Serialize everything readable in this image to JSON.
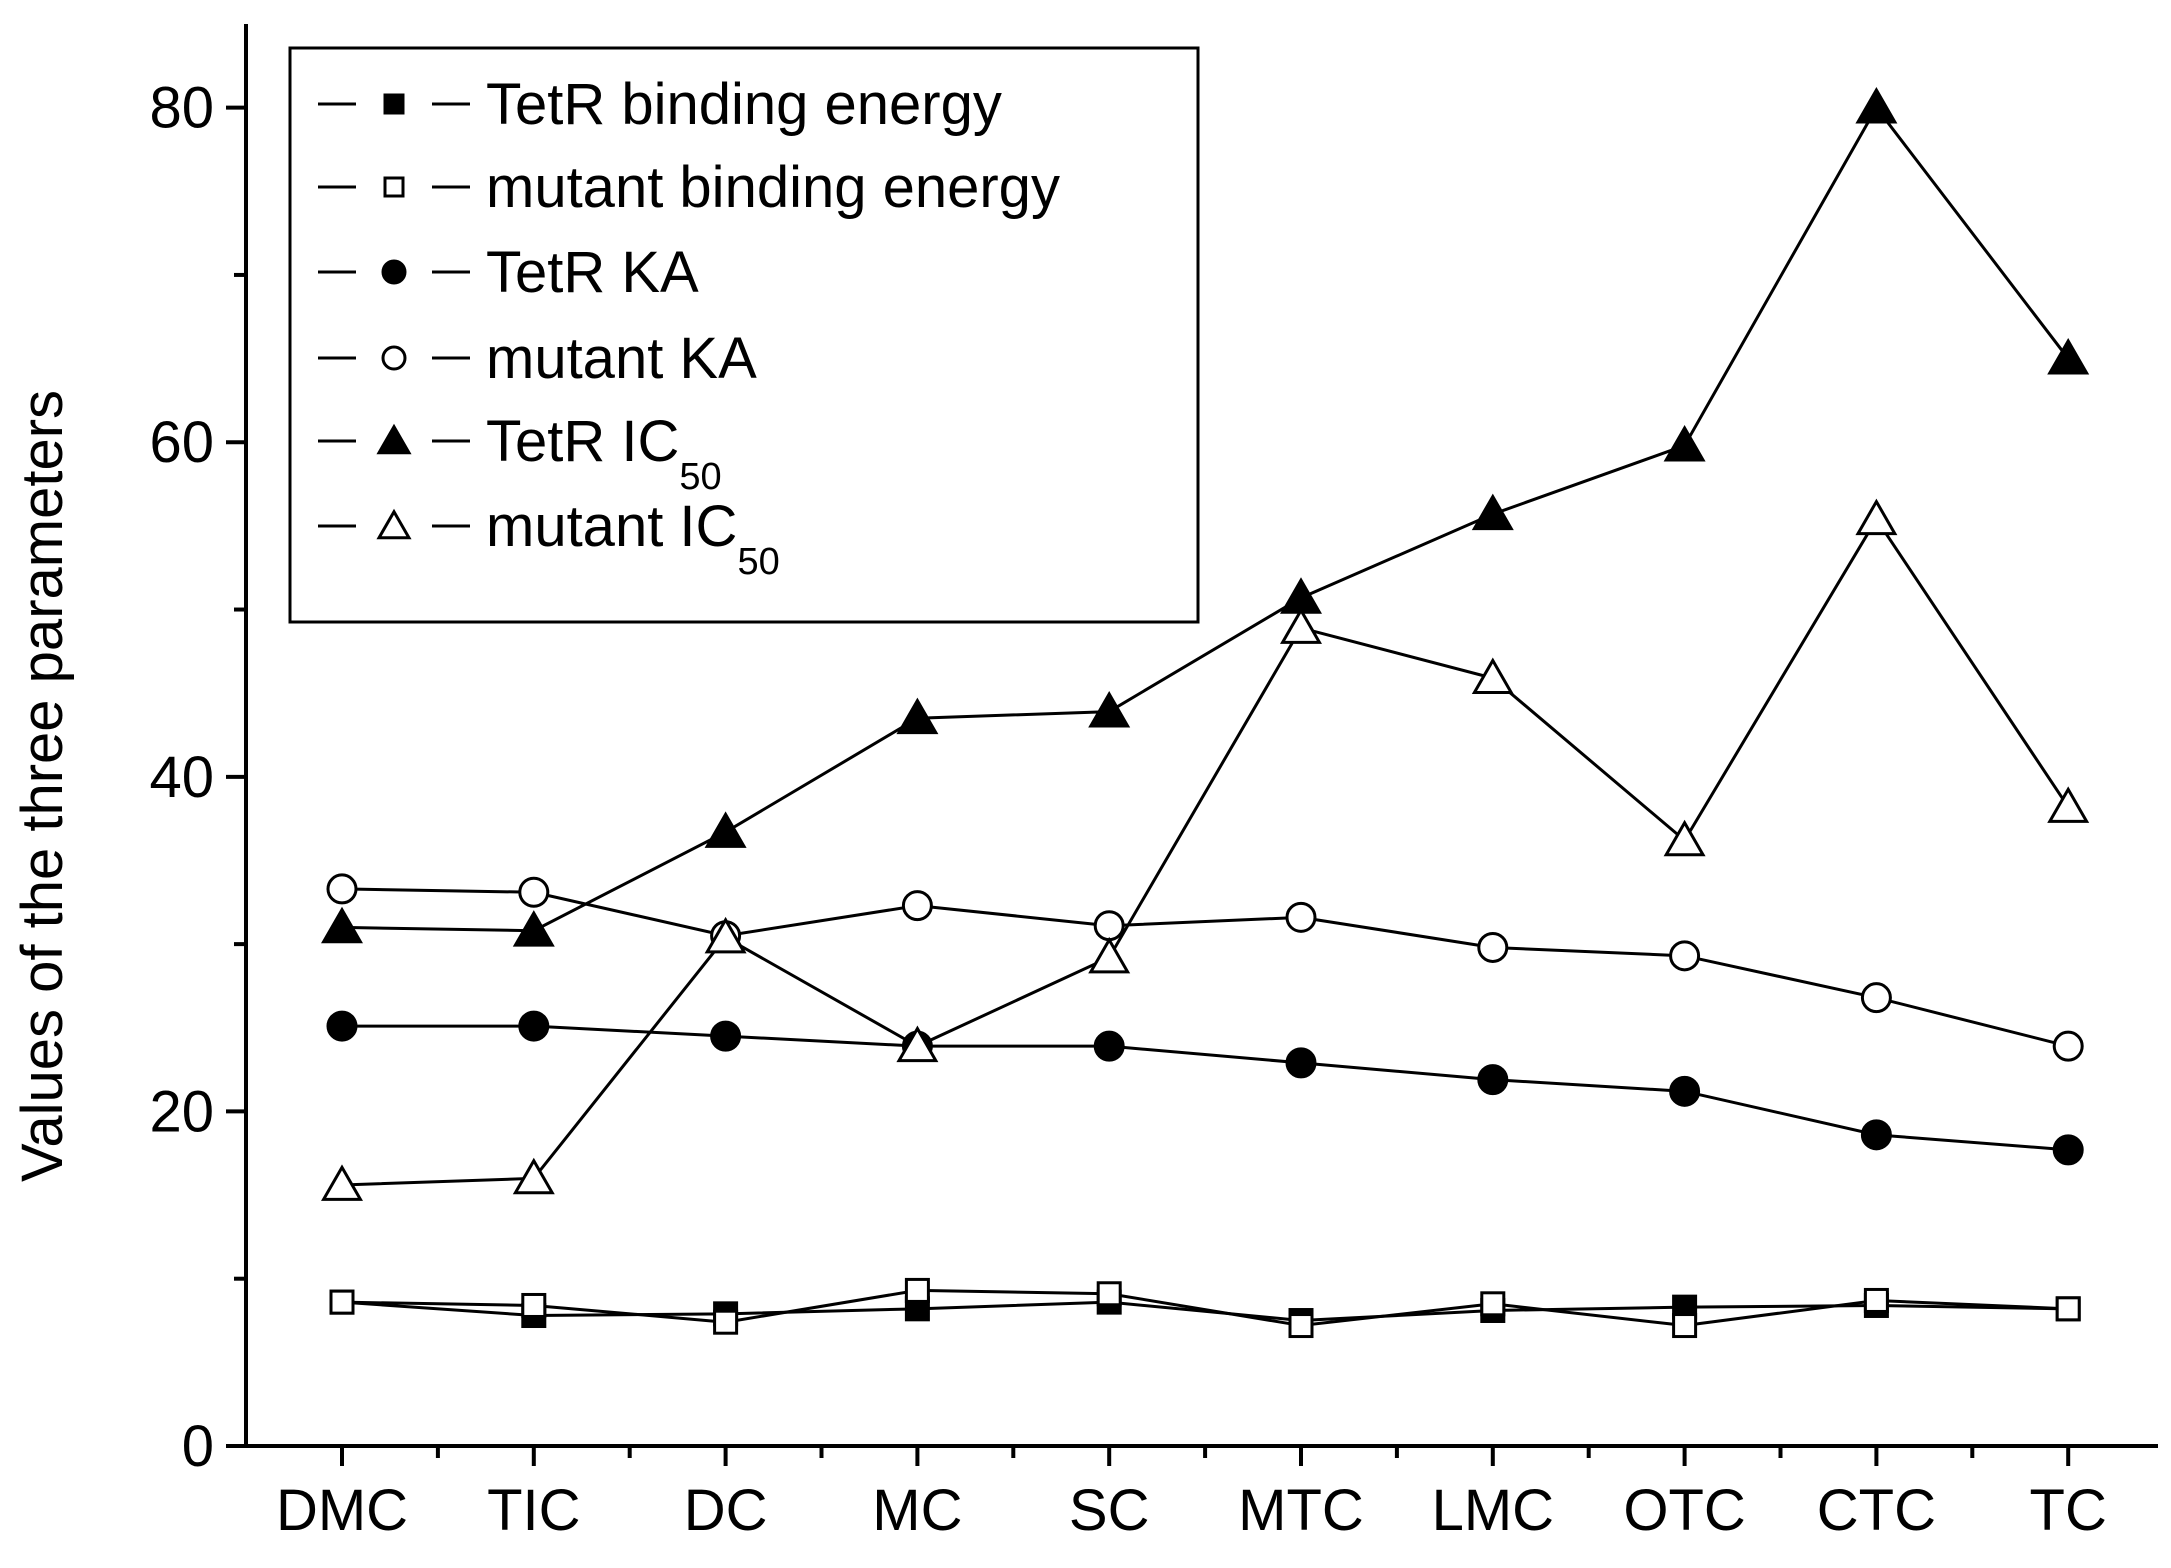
{
  "chart_data": {
    "type": "line",
    "title": "",
    "xlabel": "",
    "ylabel": "Values of the three parameters",
    "categories": [
      "DMC",
      "TIC",
      "DC",
      "MC",
      "SC",
      "MTC",
      "LMC",
      "OTC",
      "CTC",
      "TC"
    ],
    "ylim": [
      0,
      85
    ],
    "yticks": [
      0,
      20,
      40,
      60,
      80
    ],
    "grid": false,
    "legend_position": "top-left",
    "series": [
      {
        "name": "TetR binding energy",
        "label_main": "TetR binding energy",
        "label_sub": "",
        "marker": "square",
        "filled": true,
        "values": [
          8.6,
          7.8,
          7.9,
          8.2,
          8.6,
          7.5,
          8.1,
          8.3,
          8.4,
          8.2
        ]
      },
      {
        "name": "mutant binding energy",
        "label_main": "mutant binding energy",
        "label_sub": "",
        "marker": "square",
        "filled": false,
        "values": [
          8.6,
          8.4,
          7.4,
          9.3,
          9.1,
          7.2,
          8.5,
          7.2,
          8.7,
          8.2
        ]
      },
      {
        "name": "TetR KA",
        "label_main": "TetR KA",
        "label_sub": "",
        "marker": "circle",
        "filled": true,
        "values": [
          25.1,
          25.1,
          24.5,
          23.9,
          23.9,
          22.9,
          21.9,
          21.2,
          18.6,
          17.7
        ]
      },
      {
        "name": "mutant KA",
        "label_main": "mutant KA",
        "label_sub": "",
        "marker": "circle",
        "filled": false,
        "values": [
          33.3,
          33.1,
          30.5,
          32.3,
          31.1,
          31.6,
          29.8,
          29.3,
          26.8,
          23.9
        ]
      },
      {
        "name": "TetR IC50",
        "label_main": "TetR IC",
        "label_sub": "50",
        "marker": "triangle",
        "filled": true,
        "values": [
          31.0,
          30.8,
          36.7,
          43.5,
          43.9,
          50.7,
          55.7,
          59.8,
          80.0,
          65.0
        ]
      },
      {
        "name": "mutant IC50",
        "label_main": "mutant IC",
        "label_sub": "50",
        "marker": "triangle",
        "filled": false,
        "values": [
          15.6,
          16.0,
          30.4,
          23.9,
          29.2,
          48.9,
          45.9,
          36.2,
          55.4,
          38.2
        ]
      }
    ]
  }
}
